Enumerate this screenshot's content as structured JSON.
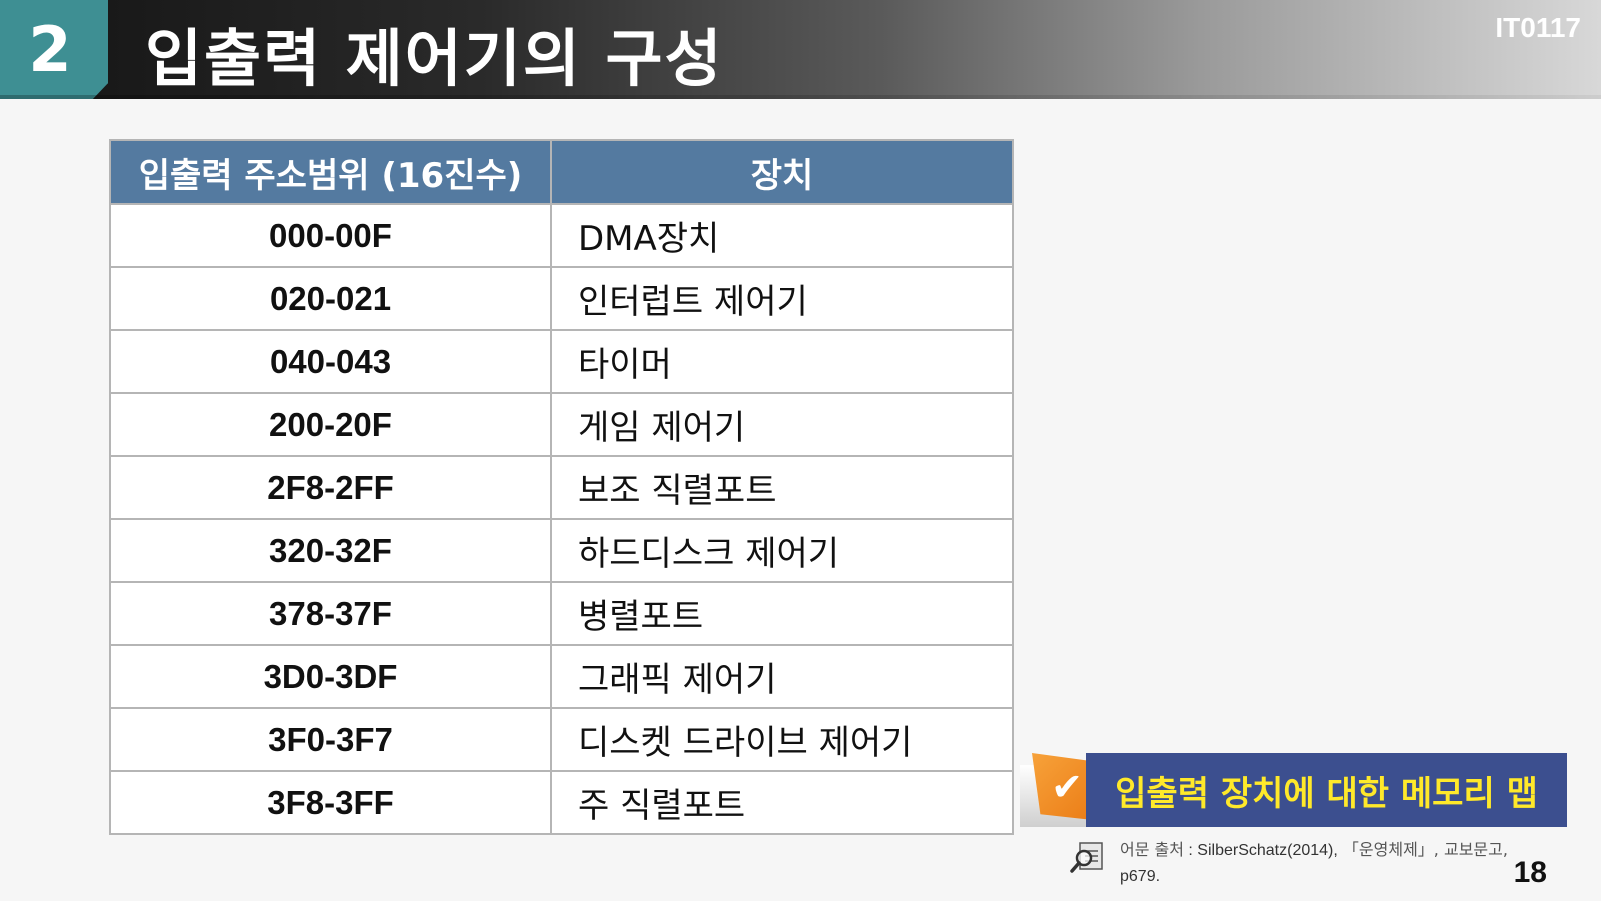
{
  "header": {
    "section_number": "2",
    "title": "입출력 제어기의 구성",
    "course_code": "IT0117"
  },
  "table": {
    "headers": [
      "입출력 주소범위 (16진수)",
      "장치"
    ],
    "rows": [
      [
        "000-00F",
        "DMA장치"
      ],
      [
        "020-021",
        "인터럽트 제어기"
      ],
      [
        "040-043",
        "타이머"
      ],
      [
        "200-20F",
        "게임 제어기"
      ],
      [
        "2F8-2FF",
        "보조 직렬포트"
      ],
      [
        "320-32F",
        "하드디스크 제어기"
      ],
      [
        "378-37F",
        "병렬포트"
      ],
      [
        "3D0-3DF",
        "그래픽 제어기"
      ],
      [
        "3F0-3F7",
        "디스켓 드라이브 제어기"
      ],
      [
        "3F8-3FF",
        "주 직렬포트"
      ]
    ]
  },
  "callout": {
    "check_icon": "✔",
    "label": "입출력 장치에 대한 메모리 맵"
  },
  "source": {
    "prefix": "어문 출처",
    "author": " : SilberSchatz(2014),",
    "book": "「운영체제」, 교보문고,",
    "page": "p679."
  },
  "page_number": "18",
  "colors": {
    "accent_teal": "#3e8f93",
    "table_header": "#547aa0",
    "callout_bg": "#3c4f8f",
    "callout_text": "#ffe92a",
    "flag_orange": "#ea7a14"
  }
}
